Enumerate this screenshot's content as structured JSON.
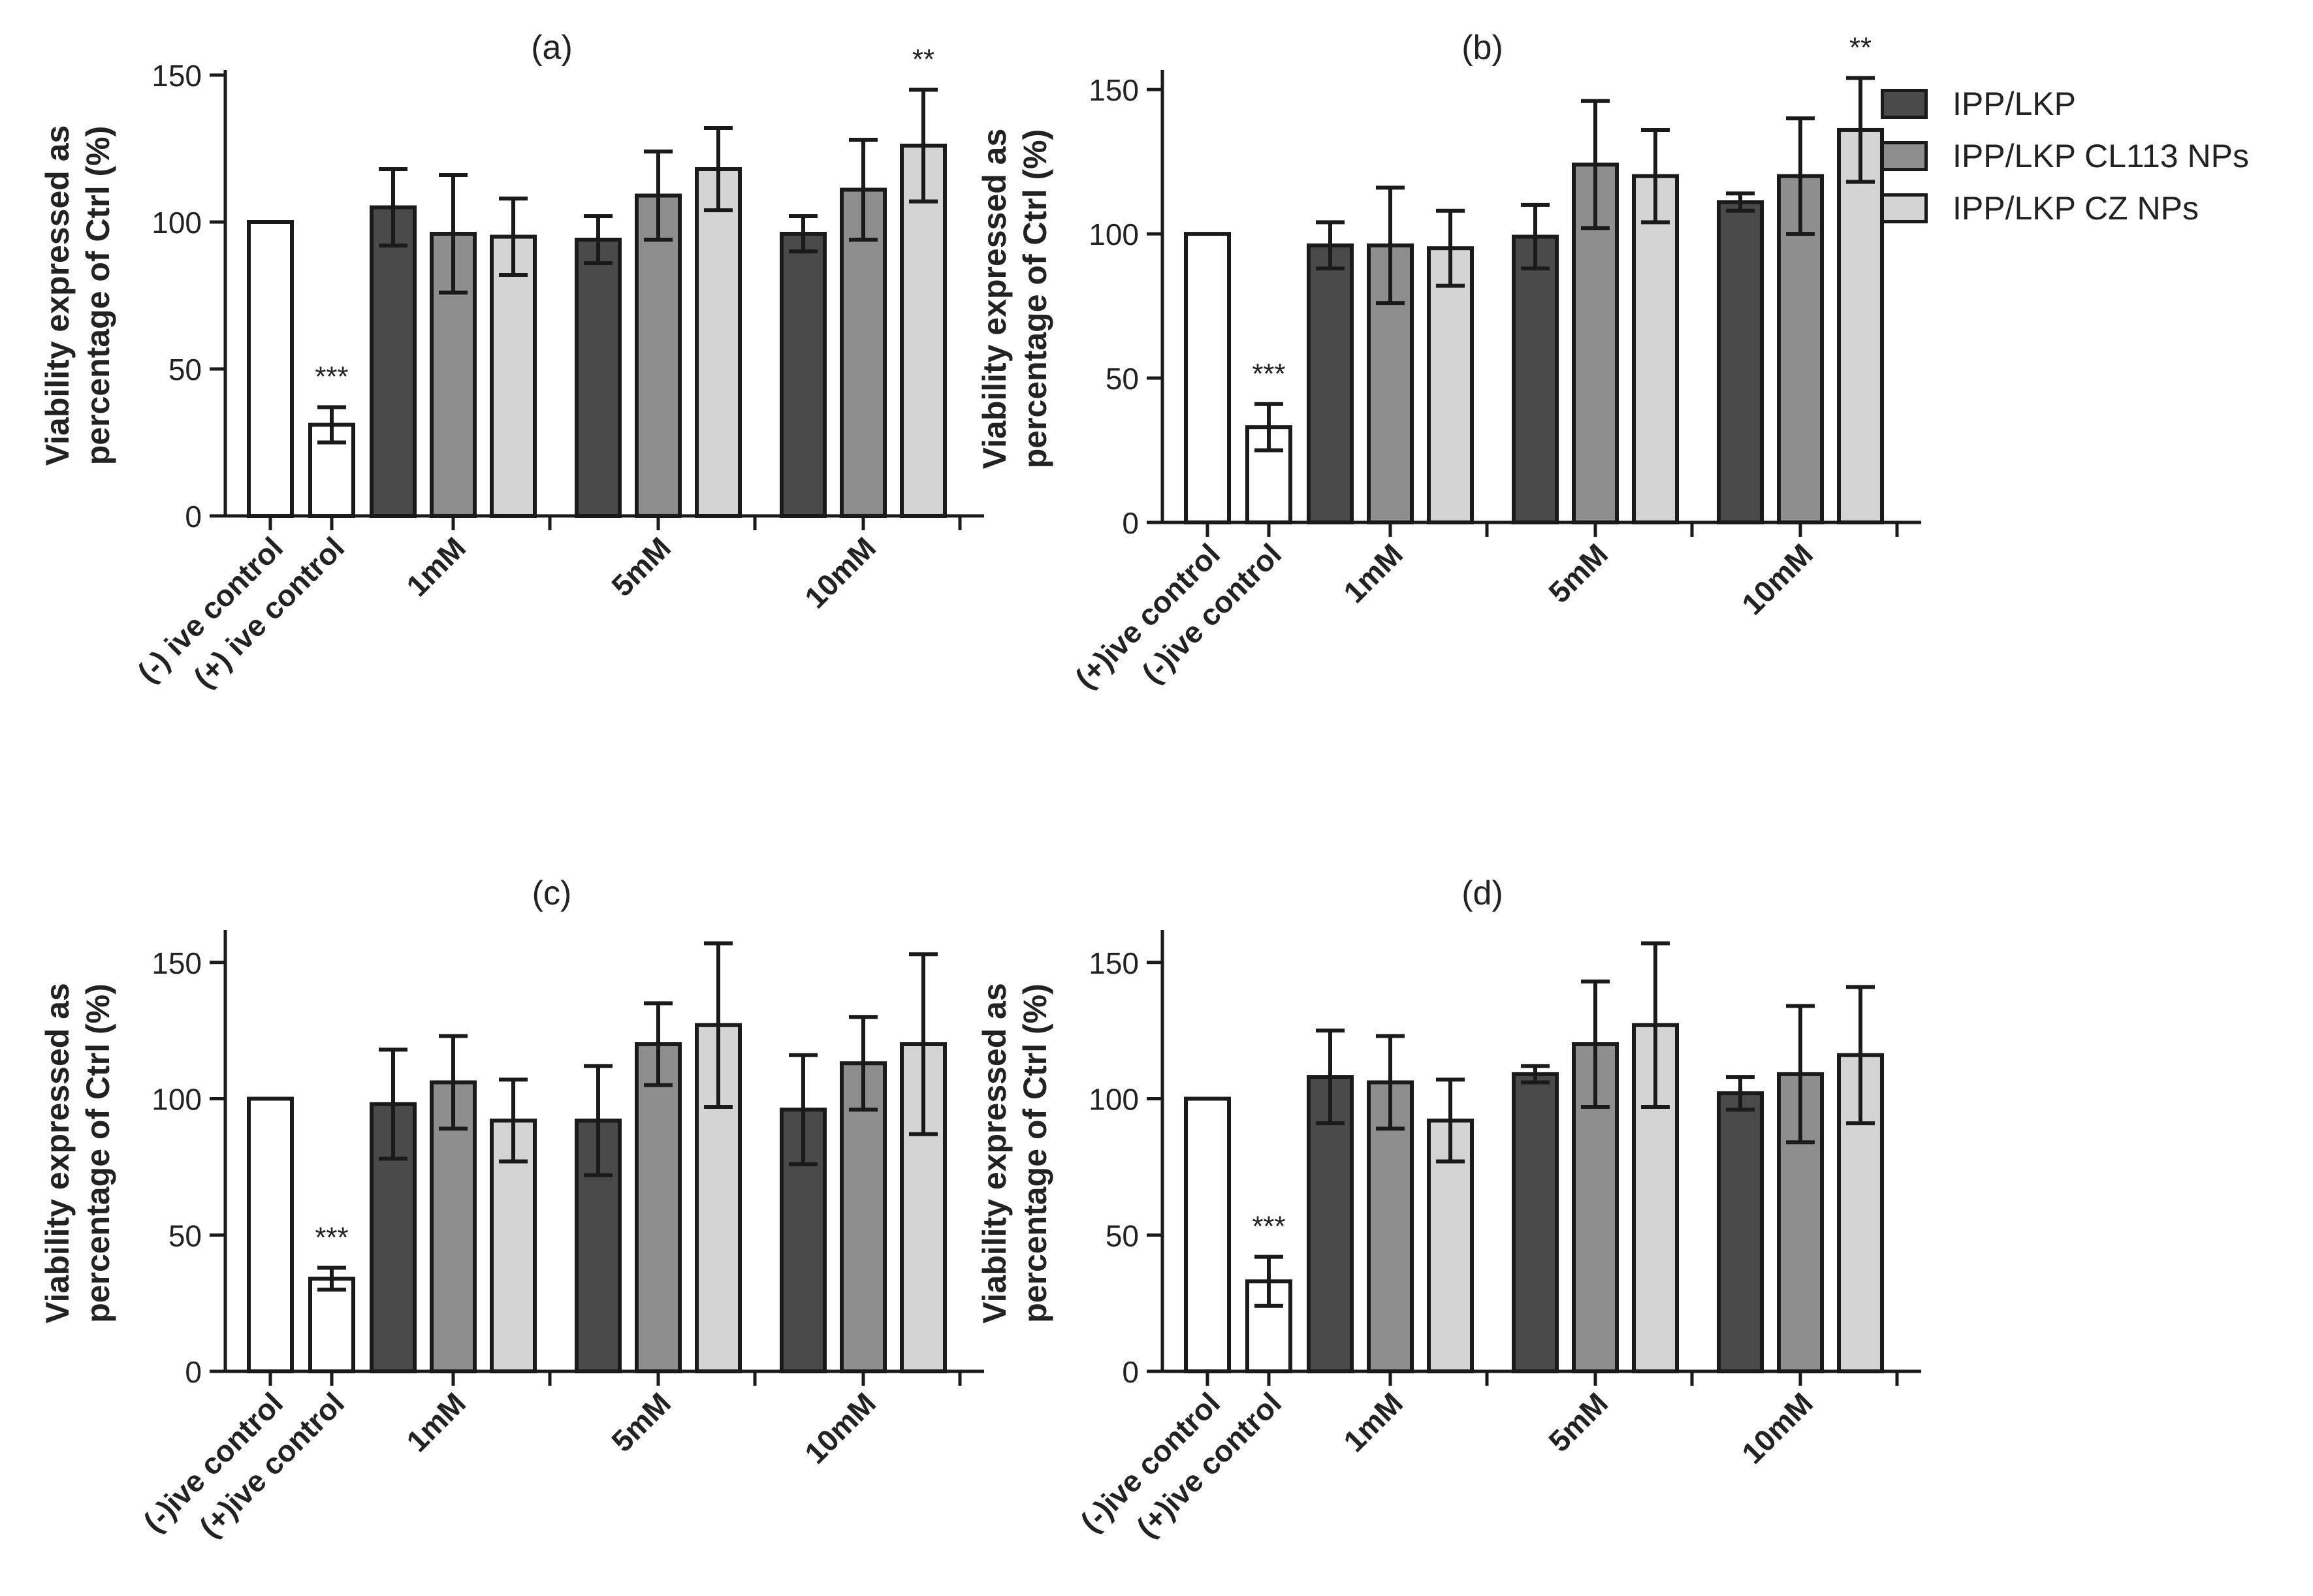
{
  "legend": [
    {
      "label": "IPP/LKP",
      "color": "#4a4a4a"
    },
    {
      "label": "IPP/LKP CL113 NPs",
      "color": "#8e8e8e"
    },
    {
      "label": "IPP/LKP CZ NPs",
      "color": "#d4d4d4"
    }
  ],
  "chart_data": [
    {
      "type": "bar",
      "title": "(a)",
      "ylabel": "Viability expressed as\npercentage of Ctrl (%)",
      "ylim": [
        0,
        150
      ],
      "yticks": [
        0,
        50,
        100,
        150
      ],
      "categories": [
        "(-) ive control",
        "(+) ive control",
        "1mM",
        "5mM",
        "10mM"
      ],
      "controls": [
        {
          "label": "(-) ive control",
          "value": 100,
          "error": 0,
          "sig": ""
        },
        {
          "label": "(+) ive control",
          "value": 31,
          "error": 6,
          "sig": "***"
        }
      ],
      "groups": [
        {
          "label": "1mM",
          "values": [
            105,
            96,
            95
          ],
          "errors": [
            13,
            20,
            13
          ],
          "sig": [
            "",
            "",
            ""
          ]
        },
        {
          "label": "5mM",
          "values": [
            94,
            109,
            118
          ],
          "errors": [
            8,
            15,
            14
          ],
          "sig": [
            "",
            "",
            ""
          ]
        },
        {
          "label": "10mM",
          "values": [
            96,
            111,
            126
          ],
          "errors": [
            6,
            17,
            19
          ],
          "sig": [
            "",
            "",
            "**"
          ]
        }
      ]
    },
    {
      "type": "bar",
      "title": "(b)",
      "ylabel": "Viability expressed as\npercentage of Ctrl (%)",
      "ylim": [
        0,
        155
      ],
      "yticks": [
        0,
        50,
        100,
        150
      ],
      "categories": [
        "(+)ive control",
        "(-)ive control",
        "1mM",
        "5mM",
        "10mM"
      ],
      "controls": [
        {
          "label": "(+)ive control",
          "value": 100,
          "error": 0,
          "sig": ""
        },
        {
          "label": "(-)ive control",
          "value": 33,
          "error": 8,
          "sig": "***"
        }
      ],
      "groups": [
        {
          "label": "1mM",
          "values": [
            96,
            96,
            95
          ],
          "errors": [
            8,
            20,
            13
          ],
          "sig": [
            "",
            "",
            ""
          ]
        },
        {
          "label": "5mM",
          "values": [
            99,
            124,
            120
          ],
          "errors": [
            11,
            22,
            16
          ],
          "sig": [
            "",
            "",
            ""
          ]
        },
        {
          "label": "10mM",
          "values": [
            111,
            120,
            136
          ],
          "errors": [
            3,
            20,
            18
          ],
          "sig": [
            "",
            "",
            "**"
          ]
        }
      ]
    },
    {
      "type": "bar",
      "title": "(c)",
      "ylabel": "Viability expressed as\npercentage of Ctrl (%)",
      "ylim": [
        0,
        160
      ],
      "yticks": [
        0,
        50,
        100,
        150
      ],
      "categories": [
        "(-)ive control",
        "(+)ive control",
        "1mM",
        "5mM",
        "10mM"
      ],
      "controls": [
        {
          "label": "(-)ive control",
          "value": 100,
          "error": 0,
          "sig": ""
        },
        {
          "label": "(+)ive control",
          "value": 34,
          "error": 4,
          "sig": "***"
        }
      ],
      "groups": [
        {
          "label": "1mM",
          "values": [
            98,
            106,
            92
          ],
          "errors": [
            20,
            17,
            15
          ],
          "sig": [
            "",
            "",
            ""
          ]
        },
        {
          "label": "5mM",
          "values": [
            92,
            120,
            127
          ],
          "errors": [
            20,
            15,
            30
          ],
          "sig": [
            "",
            "",
            ""
          ]
        },
        {
          "label": "10mM",
          "values": [
            96,
            113,
            120
          ],
          "errors": [
            20,
            17,
            33
          ],
          "sig": [
            "",
            "",
            ""
          ]
        }
      ]
    },
    {
      "type": "bar",
      "title": "(d)",
      "ylabel": "Viability expressed as\npercentage of Ctrl (%)",
      "ylim": [
        0,
        160
      ],
      "yticks": [
        0,
        50,
        100,
        150
      ],
      "categories": [
        "(-)ive control",
        "(+)ive control",
        "1mM",
        "5mM",
        "10mM"
      ],
      "controls": [
        {
          "label": "(-)ive control",
          "value": 100,
          "error": 0,
          "sig": ""
        },
        {
          "label": "(+)ive control",
          "value": 33,
          "error": 9,
          "sig": "***"
        }
      ],
      "groups": [
        {
          "label": "1mM",
          "values": [
            108,
            106,
            92
          ],
          "errors": [
            17,
            17,
            15
          ],
          "sig": [
            "",
            "",
            ""
          ]
        },
        {
          "label": "5mM",
          "values": [
            109,
            120,
            127
          ],
          "errors": [
            3,
            23,
            30
          ],
          "sig": [
            "",
            "",
            ""
          ]
        },
        {
          "label": "10mM",
          "values": [
            102,
            109,
            116
          ],
          "errors": [
            6,
            25,
            25
          ],
          "sig": [
            "",
            "",
            ""
          ]
        }
      ]
    }
  ]
}
